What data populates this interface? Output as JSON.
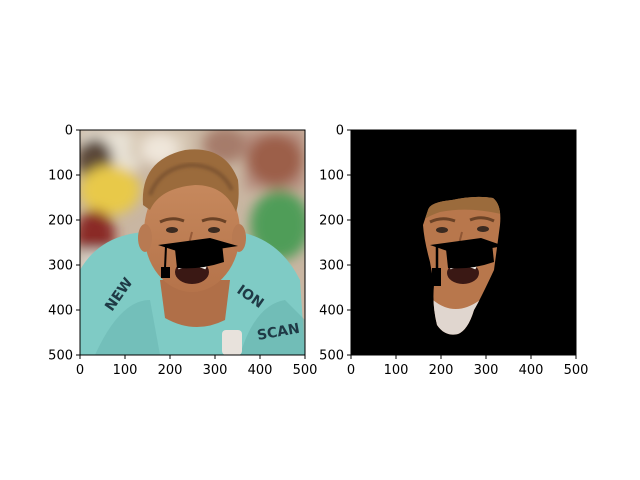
{
  "figure": {
    "background": "#ffffff",
    "panels": [
      {
        "name": "original-photo",
        "content": "cyclist face with graduation cap overlay",
        "x_ticks": [
          "0",
          "100",
          "200",
          "300",
          "400",
          "500"
        ],
        "y_ticks": [
          "0",
          "100",
          "200",
          "300",
          "400",
          "500"
        ],
        "xlim": [
          0,
          500
        ],
        "ylim": [
          500,
          0
        ]
      },
      {
        "name": "segmented-face",
        "content": "face region on black background with graduation cap overlay",
        "x_ticks": [
          "0",
          "100",
          "200",
          "300",
          "400",
          "500"
        ],
        "y_ticks": [
          "0",
          "100",
          "200",
          "300",
          "400",
          "500"
        ],
        "xlim": [
          0,
          500
        ],
        "ylim": [
          500,
          0
        ]
      }
    ],
    "colors": {
      "jersey": "#79c9c4",
      "skin": "#c98a5e",
      "hair": "#a06e3a",
      "mask_background": "#000000",
      "cap": "#000000"
    }
  }
}
